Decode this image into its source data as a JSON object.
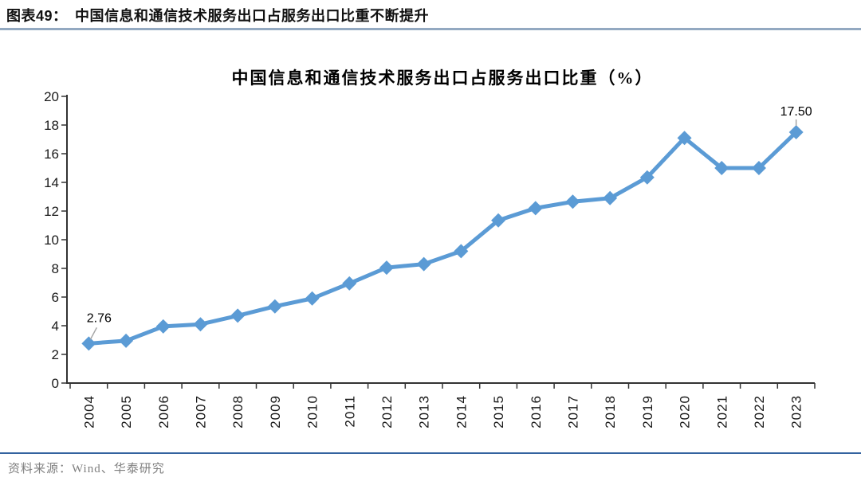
{
  "header": {
    "figure_caption": "图表49：　中国信息和通信技术服务出口占服务出口比重不断提升"
  },
  "footer": {
    "source": "资料来源：Wind、华泰研究"
  },
  "chart_data": {
    "type": "line",
    "title": "中国信息和通信技术服务出口占服务出口比重（%）",
    "categories": [
      "2004",
      "2005",
      "2006",
      "2007",
      "2008",
      "2009",
      "2010",
      "2011",
      "2012",
      "2013",
      "2014",
      "2015",
      "2016",
      "2017",
      "2018",
      "2019",
      "2020",
      "2021",
      "2022",
      "2023"
    ],
    "series": [
      {
        "name": "中国信息和通信技术服务出口占服务出口比重",
        "values": [
          2.76,
          2.95,
          3.95,
          4.1,
          4.7,
          5.35,
          5.9,
          6.95,
          8.05,
          8.3,
          9.2,
          11.35,
          12.2,
          12.65,
          12.9,
          14.35,
          17.1,
          15.0,
          15.0,
          17.5
        ]
      }
    ],
    "point_labels": [
      {
        "index": 0,
        "text": "2.76"
      },
      {
        "index": 19,
        "text": "17.50"
      }
    ],
    "xlabel": "",
    "ylabel": "",
    "ylim": [
      0,
      20
    ],
    "ytick_step": 2,
    "grid": false,
    "legend": "none",
    "x_label_rotation": -90,
    "marker": "diamond",
    "colors": {
      "line": "#5B9BD5",
      "marker": "#5B9BD5",
      "axis": "#333333",
      "tick_label": "#1a1a1a",
      "point_label": "#000000",
      "leader_line": "#A6A6A6"
    }
  }
}
